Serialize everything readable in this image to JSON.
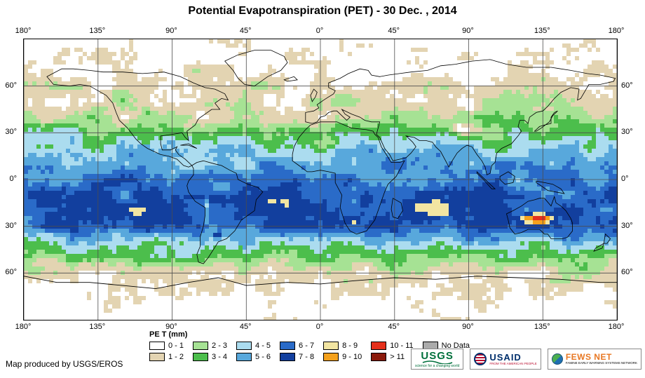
{
  "title": "Potential Evapotranspiration (PET) - 30 Dec. , 2014",
  "credit": "Map produced by USGS/EROS",
  "map": {
    "axis": {
      "top": [
        "180°",
        "135°",
        "90°",
        "45°",
        "0°",
        "45°",
        "90°",
        "135°",
        "180°"
      ],
      "bottom": [
        "180°",
        "135°",
        "90°",
        "45°",
        "0°",
        "45°",
        "90°",
        "135°",
        "180°"
      ],
      "left": [
        "60°",
        "30°",
        "0°",
        "30°",
        "60°"
      ],
      "right": [
        "60°",
        "30°",
        "0°",
        "30°",
        "60°"
      ]
    },
    "grid_color": "#4d4d4d",
    "coast_color": "#000000"
  },
  "legend": {
    "title": "PE T (mm)",
    "items": [
      {
        "label": "0 - 1",
        "color": "#FFFFFF"
      },
      {
        "label": "1 - 2",
        "color": "#E3D4B2"
      },
      {
        "label": "2 - 3",
        "color": "#A6E294"
      },
      {
        "label": "3 - 4",
        "color": "#4CBE4C"
      },
      {
        "label": "4 - 5",
        "color": "#ABDCEF"
      },
      {
        "label": "5 - 6",
        "color": "#58A8DC"
      },
      {
        "label": "6 - 7",
        "color": "#2A6BC8"
      },
      {
        "label": "7 - 8",
        "color": "#123F9E"
      },
      {
        "label": "8 - 9",
        "color": "#F2E5A2"
      },
      {
        "label": "9 - 10",
        "color": "#F5A11C"
      },
      {
        "label": "10 - 11",
        "color": "#E5301C"
      },
      {
        "label": "> 11",
        "color": "#8A1A0B"
      },
      {
        "label": "No Data",
        "color": "#ABABAB"
      }
    ]
  },
  "logos": {
    "usgs": {
      "name": "USGS",
      "tagline": "science for a changing world",
      "color": "#00703C"
    },
    "usaid": {
      "name": "USAID",
      "tagline": "FROM THE AMERICAN PEOPLE",
      "color": "#002F6C",
      "accent": "#BA0C2F"
    },
    "fewsnet": {
      "name": "FEWS NET",
      "tagline": "FAMINE EARLY WARNING SYSTEMS NETWORK",
      "color": "#E87722"
    }
  }
}
